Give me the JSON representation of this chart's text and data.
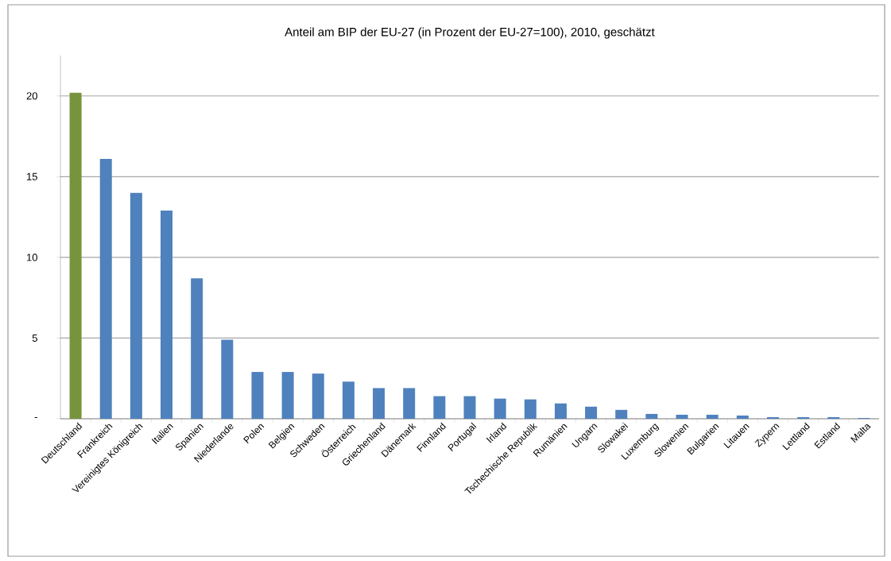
{
  "chart_data": {
    "type": "bar",
    "title": "Anteil am BIP der EU-27 (in Prozent der EU-27=100), 2010, geschätzt",
    "categories": [
      "Deutschland",
      "Frankreich",
      "Vereinigtes Königreich",
      "Italien",
      "Spanien",
      "Niederlande",
      "Polen",
      "Belgien",
      "Schweden",
      "Österreich",
      "Griechenland",
      "Dänemark",
      "Finnland",
      "Portugal",
      "Irland",
      "Tschechische Republik",
      "Rumänien",
      "Ungarn",
      "Slowakei",
      "Luxemburg",
      "Slowenien",
      "Bulgarien",
      "Litauen",
      "Zypern",
      "Lettland",
      "Estland",
      "Malta"
    ],
    "values": [
      20.2,
      16.1,
      14.0,
      12.9,
      8.7,
      4.9,
      2.9,
      2.9,
      2.8,
      2.3,
      1.9,
      1.9,
      1.4,
      1.4,
      1.25,
      1.2,
      0.95,
      0.75,
      0.55,
      0.3,
      0.25,
      0.25,
      0.2,
      0.1,
      0.1,
      0.1,
      0.05
    ],
    "colors": [
      "#77933c",
      "#4f81bd",
      "#4f81bd",
      "#4f81bd",
      "#4f81bd",
      "#4f81bd",
      "#4f81bd",
      "#4f81bd",
      "#4f81bd",
      "#4f81bd",
      "#4f81bd",
      "#4f81bd",
      "#4f81bd",
      "#4f81bd",
      "#4f81bd",
      "#4f81bd",
      "#4f81bd",
      "#4f81bd",
      "#4f81bd",
      "#4f81bd",
      "#4f81bd",
      "#4f81bd",
      "#4f81bd",
      "#4f81bd",
      "#4f81bd",
      "#4f81bd",
      "#4f81bd"
    ],
    "ylim": [
      0,
      22.5
    ],
    "yticks": [
      {
        "value": 0,
        "label": "-"
      },
      5,
      10,
      15,
      20
    ],
    "grid": "y"
  }
}
